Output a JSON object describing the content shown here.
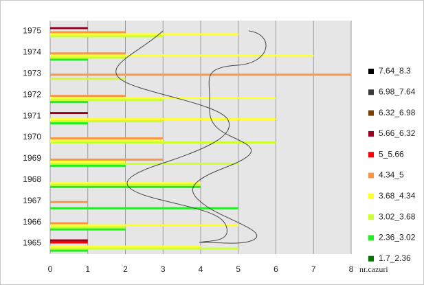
{
  "chart_data": {
    "type": "hbar",
    "categories": [
      "1965",
      "1966",
      "1967",
      "1968",
      "1969",
      "1970",
      "1971",
      "1972",
      "1973",
      "1974",
      "1975"
    ],
    "x_label": "nr.cazuri",
    "xlim": [
      0,
      8
    ],
    "xticks": [
      0,
      1,
      2,
      3,
      4,
      5,
      6,
      7,
      8
    ],
    "grid": true,
    "series": [
      {
        "name": "7.64_8.3",
        "color": "#000000",
        "values": [
          0,
          0,
          0,
          0,
          0,
          0,
          0,
          0,
          0,
          0,
          0
        ]
      },
      {
        "name": "6.98_7.64",
        "color": "#3a3a3a",
        "values": [
          0,
          0,
          0,
          0,
          0,
          0,
          0,
          0,
          0,
          0,
          0
        ]
      },
      {
        "name": "6.32_6.98",
        "color": "#7f3f00",
        "values": [
          0,
          0,
          0,
          0,
          0,
          0,
          0,
          0,
          0,
          0,
          0
        ]
      },
      {
        "name": "5.66_6.32",
        "color": "#a0001e",
        "values": [
          1,
          0,
          0,
          0,
          0,
          0,
          1,
          0,
          0,
          0,
          1
        ]
      },
      {
        "name": "5_5.66",
        "color": "#ff0000",
        "values": [
          1,
          0,
          0,
          0,
          0,
          0,
          0,
          0,
          0,
          0,
          0
        ]
      },
      {
        "name": "4.34_5",
        "color": "#f79646",
        "values": [
          0,
          1,
          1,
          0,
          3,
          3,
          0,
          2,
          8,
          2,
          2
        ]
      },
      {
        "name": "3.68_4.34",
        "color": "#ffff33",
        "values": [
          4,
          5,
          0,
          4,
          2,
          3,
          6,
          6,
          0,
          7,
          5
        ]
      },
      {
        "name": "3.02_3.68",
        "color": "#ccff33",
        "values": [
          5,
          2,
          0,
          4,
          5,
          6,
          3,
          3,
          2,
          2,
          3
        ]
      },
      {
        "name": "2.36_3.02",
        "color": "#22ee22",
        "values": [
          1,
          2,
          5,
          4,
          2,
          0,
          1,
          1,
          0,
          1,
          0
        ]
      },
      {
        "name": "1.7_2.36",
        "color": "#007a00",
        "values": [
          0,
          0,
          0,
          0,
          0,
          0,
          0,
          0,
          0,
          0,
          0
        ]
      }
    ]
  }
}
